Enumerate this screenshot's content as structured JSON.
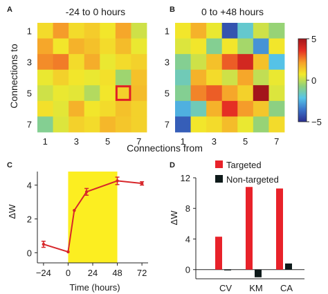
{
  "panel_labels": {
    "a": "A",
    "b": "B",
    "c": "C",
    "d": "D"
  },
  "heatmap_common": {
    "ylabel": "Connections to",
    "xlabel": "Connections from",
    "tick_labels": [
      "1",
      "3",
      "5",
      "7"
    ],
    "colorbar_ticks": [
      "5",
      "0",
      "−5"
    ],
    "vmin": -5,
    "vmax": 5,
    "colormap": [
      "#2b2e8f",
      "#3b72c9",
      "#56c5e8",
      "#8fd17c",
      "#f2ea2b",
      "#f6a02a",
      "#e63024",
      "#a3151b"
    ]
  },
  "chart_data": [
    {
      "type": "heatmap",
      "title": "-24 to 0 hours",
      "rows": 7,
      "cols": 7,
      "highlight_cell": [
        5,
        6
      ],
      "highlight_color": "#e01f26",
      "values": [
        [
          1.0,
          2.2,
          1.0,
          1.3,
          0.8,
          2.0,
          0.2
        ],
        [
          2.0,
          0.8,
          1.8,
          1.5,
          1.0,
          1.6,
          0.6
        ],
        [
          2.4,
          2.6,
          1.0,
          1.9,
          0.6,
          1.0,
          1.2
        ],
        [
          0.6,
          1.2,
          0.8,
          0.6,
          0.9,
          -0.5,
          1.5
        ],
        [
          0.2,
          0.6,
          0.5,
          -0.2,
          0.8,
          1.2,
          1.6
        ],
        [
          0.9,
          0.5,
          1.8,
          0.8,
          1.0,
          1.5,
          1.2
        ],
        [
          -1.0,
          0.4,
          1.2,
          1.0,
          1.7,
          1.4,
          1.2
        ]
      ]
    },
    {
      "type": "heatmap",
      "title": "0 to +48 hours",
      "rows": 7,
      "cols": 7,
      "highlight_cell": [
        5,
        6
      ],
      "highlight_color": "#a3151b",
      "values": [
        [
          0.8,
          1.8,
          0.6,
          -4.2,
          -1.8,
          0.2,
          -0.6
        ],
        [
          0.4,
          0.8,
          -1.0,
          0.8,
          -0.4,
          -3.0,
          0.8
        ],
        [
          -1.0,
          0.2,
          1.5,
          3.0,
          4.0,
          1.5,
          -2.2
        ],
        [
          -1.5,
          1.8,
          1.0,
          0.2,
          2.0,
          0.0,
          0.6
        ],
        [
          -1.0,
          2.5,
          3.0,
          2.0,
          1.2,
          5.0,
          0.4
        ],
        [
          -2.5,
          -1.5,
          1.8,
          3.6,
          2.2,
          1.4,
          -0.8
        ],
        [
          -4.0,
          0.8,
          1.0,
          1.6,
          0.6,
          -0.6,
          1.0
        ]
      ]
    },
    {
      "type": "line",
      "title": "",
      "xlabel": "Time (hours)",
      "ylabel": "ΔW",
      "xlim": [
        -30,
        78
      ],
      "ylim": [
        -0.6,
        4.8
      ],
      "xticks": [
        -24,
        0,
        24,
        48,
        72
      ],
      "xtick_labels": [
        "−24",
        "0",
        "24",
        "48",
        "72"
      ],
      "yticks": [
        0,
        2,
        4
      ],
      "shaded_interval": [
        0,
        48
      ],
      "shade_color": "#fcee21",
      "line_color": "#d7262a",
      "series": [
        {
          "x": [
            -24,
            0,
            6,
            18,
            48,
            72
          ],
          "y": [
            0.5,
            0.05,
            2.5,
            3.6,
            4.25,
            4.1
          ],
          "err": [
            0.18,
            0,
            0,
            0.2,
            0.22,
            0.1
          ]
        }
      ]
    },
    {
      "type": "bar",
      "title": "",
      "xlabel": "",
      "ylabel": "ΔW",
      "categories": [
        "CV",
        "KM",
        "CA"
      ],
      "ylim": [
        -1.2,
        12
      ],
      "yticks": [
        0,
        4,
        8,
        12
      ],
      "legend_position": "top-center",
      "series": [
        {
          "name": "Targeted",
          "color": "#e8222a",
          "values": [
            4.3,
            10.8,
            10.6
          ]
        },
        {
          "name": "Non-targeted",
          "color": "#0e1a1a",
          "values": [
            -0.1,
            -1.0,
            0.8
          ]
        }
      ]
    }
  ]
}
